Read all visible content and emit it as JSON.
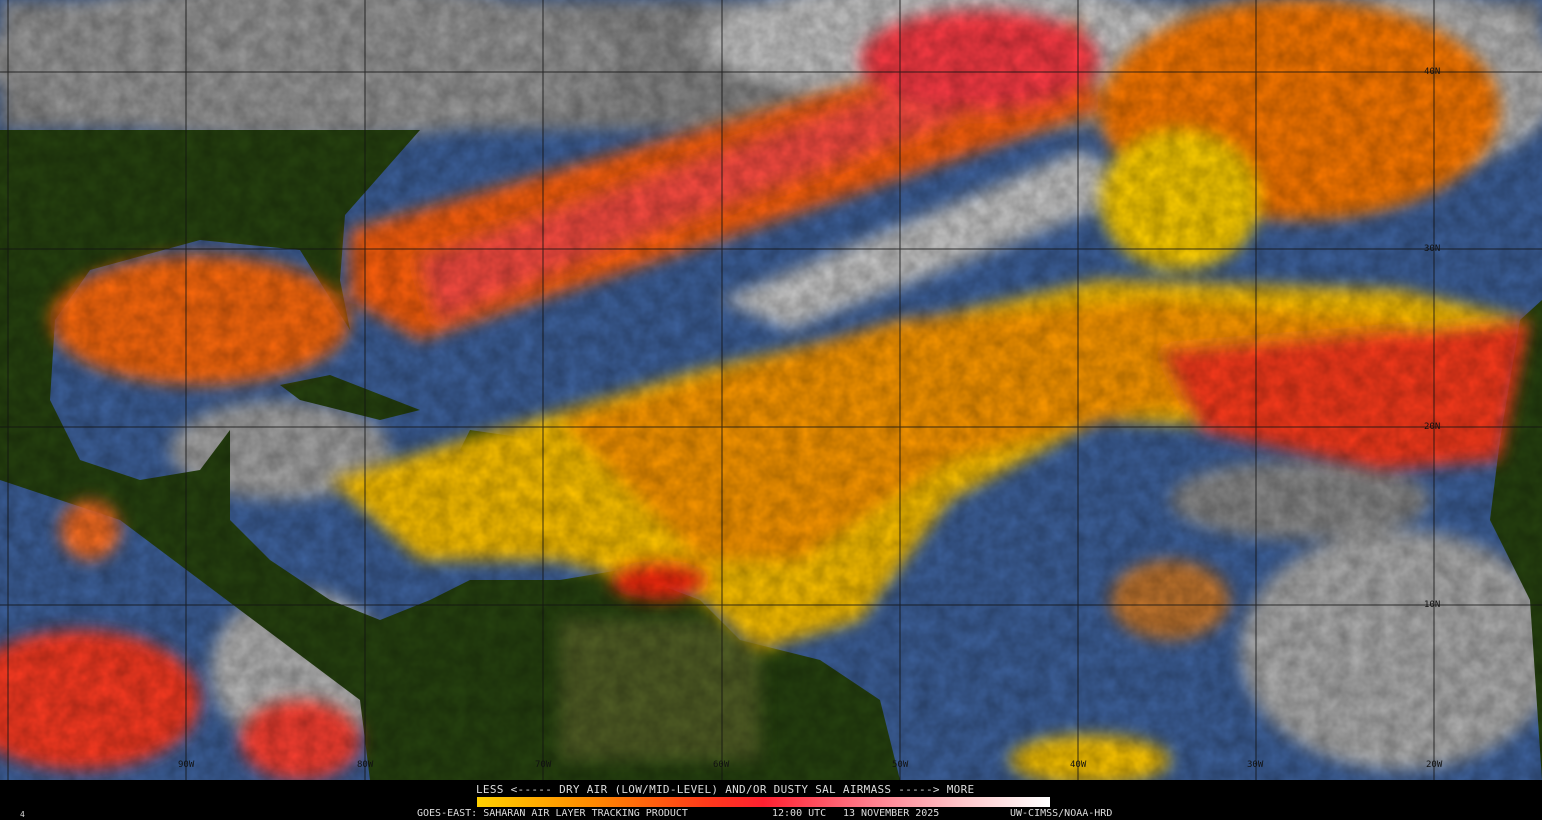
{
  "map": {
    "latitude_labels": [
      "40N",
      "30N",
      "20N",
      "10N"
    ],
    "longitude_labels": [
      "90W",
      "80W",
      "70W",
      "60W",
      "50W",
      "40W",
      "30W",
      "20W"
    ],
    "colors": {
      "ocean": "#3a5f99",
      "land": "#23400f",
      "cloud": "#b8b8b8",
      "dust_low": "#ffd000",
      "dust_mid": "#ff6a00",
      "dust_high": "#ff2a40",
      "dust_max": "#ffffff"
    }
  },
  "legend": {
    "title": "LESS <----- DRY AIR (LOW/MID-LEVEL) AND/OR DUSTY SAL AIRMASS -----> MORE",
    "scale_colors": [
      "#ffd000",
      "#ff8a00",
      "#ff3a1a",
      "#ff7a8a",
      "#ffffff"
    ]
  },
  "footer": {
    "product": "GOES-EAST: SAHARAN AIR LAYER TRACKING PRODUCT",
    "time": "12:00 UTC",
    "date": "13 NOVEMBER 2025",
    "credit": "UW-CIMSS/NOAA-HRD",
    "corner_mark": "4"
  }
}
